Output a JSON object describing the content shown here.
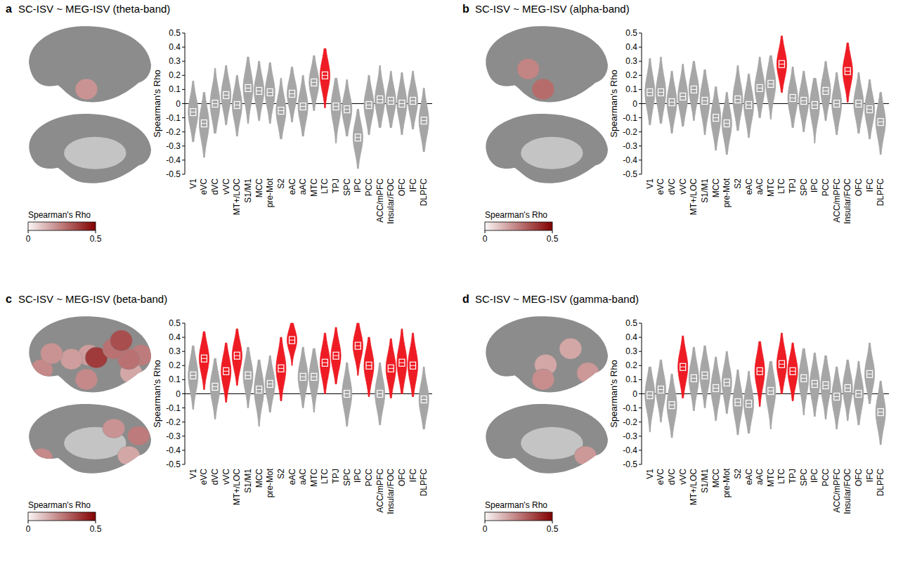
{
  "chart_data": [
    {
      "type": "violin",
      "panel": "a",
      "title": "SC-ISV ~ MEG-ISV (theta-band)",
      "y_label": "Spearman's Rho",
      "categories": [
        "V1",
        "eVC",
        "dVC",
        "vVC",
        "MT+/LOC",
        "S1/M1",
        "MCC",
        "pre-Mot",
        "S2",
        "eAC",
        "aAC",
        "MTC",
        "LTC",
        "TPJ",
        "SPC",
        "IPC",
        "PCC",
        "ACC/mPFC",
        "Insular/FOC",
        "OFC",
        "IFC",
        "DLPFC"
      ],
      "values": [
        -0.06,
        -0.14,
        0.0,
        0.06,
        -0.01,
        0.11,
        0.09,
        0.08,
        -0.05,
        0.07,
        -0.02,
        0.15,
        0.2,
        -0.02,
        -0.04,
        -0.24,
        -0.01,
        0.03,
        0.02,
        0.0,
        0.02,
        -0.12
      ],
      "low": [
        -0.27,
        -0.38,
        -0.21,
        -0.15,
        -0.23,
        -0.14,
        -0.12,
        -0.14,
        -0.25,
        -0.13,
        -0.23,
        -0.05,
        -0.03,
        -0.28,
        -0.23,
        -0.46,
        -0.22,
        -0.17,
        -0.17,
        -0.22,
        -0.18,
        -0.34
      ],
      "high": [
        0.16,
        0.08,
        0.25,
        0.27,
        0.2,
        0.33,
        0.3,
        0.29,
        0.18,
        0.26,
        0.2,
        0.34,
        0.39,
        0.18,
        0.17,
        -0.04,
        0.2,
        0.27,
        0.23,
        0.22,
        0.23,
        0.11
      ],
      "color": "#a6a6a6",
      "colors": [
        "#a6a6a6",
        "#a6a6a6",
        "#a6a6a6",
        "#a6a6a6",
        "#a6a6a6",
        "#a6a6a6",
        "#a6a6a6",
        "#a6a6a6",
        "#a6a6a6",
        "#a6a6a6",
        "#a6a6a6",
        "#a6a6a6",
        "#ee1c24",
        "#a6a6a6",
        "#a6a6a6",
        "#a6a6a6",
        "#a6a6a6",
        "#a6a6a6",
        "#a6a6a6",
        "#a6a6a6",
        "#a6a6a6",
        "#a6a6a6"
      ],
      "ylim": [
        -0.5,
        0.5
      ],
      "yticks": [
        -0.5,
        -0.4,
        -0.3,
        -0.2,
        -0.1,
        0,
        0.1,
        0.2,
        0.3,
        0.4,
        0.5
      ],
      "colorbar": {
        "label": "Spearman's Rho",
        "range": [
          0,
          0.5
        ],
        "ticks": [
          0,
          0.5
        ]
      }
    },
    {
      "type": "violin",
      "panel": "b",
      "title": "SC-ISV ~ MEG-ISV (alpha-band)",
      "y_label": "Spearman's Rho",
      "categories": [
        "V1",
        "eVC",
        "dVC",
        "vVC",
        "MT+/LOC",
        "S1/M1",
        "MCC",
        "pre-Mot",
        "S2",
        "eAC",
        "aAC",
        "MTC",
        "LTC",
        "TPJ",
        "SPC",
        "IPC",
        "PCC",
        "ACC/mPFC",
        "Insular/FOC",
        "OFC",
        "IFC",
        "DLPFC"
      ],
      "values": [
        0.08,
        0.08,
        0.01,
        0.05,
        0.1,
        0.02,
        -0.1,
        -0.14,
        0.03,
        -0.01,
        0.11,
        0.14,
        0.28,
        0.04,
        0.02,
        -0.01,
        0.09,
        0.0,
        0.23,
        0.0,
        -0.04,
        -0.13
      ],
      "low": [
        -0.15,
        -0.14,
        -0.21,
        -0.16,
        -0.12,
        -0.22,
        -0.33,
        -0.36,
        -0.19,
        -0.24,
        -0.1,
        -0.11,
        0.08,
        -0.17,
        -0.2,
        -0.28,
        -0.12,
        -0.22,
        0.01,
        -0.21,
        -0.25,
        -0.36
      ],
      "high": [
        0.32,
        0.33,
        0.23,
        0.28,
        0.3,
        0.24,
        0.12,
        0.08,
        0.27,
        0.21,
        0.33,
        0.34,
        0.48,
        0.26,
        0.23,
        0.18,
        0.3,
        0.22,
        0.43,
        0.22,
        0.17,
        0.08
      ],
      "color": "#a6a6a6",
      "colors": [
        "#a6a6a6",
        "#a6a6a6",
        "#a6a6a6",
        "#a6a6a6",
        "#a6a6a6",
        "#a6a6a6",
        "#a6a6a6",
        "#a6a6a6",
        "#a6a6a6",
        "#a6a6a6",
        "#a6a6a6",
        "#a6a6a6",
        "#ee1c24",
        "#a6a6a6",
        "#a6a6a6",
        "#a6a6a6",
        "#a6a6a6",
        "#a6a6a6",
        "#ee1c24",
        "#a6a6a6",
        "#a6a6a6",
        "#a6a6a6"
      ],
      "ylim": [
        -0.5,
        0.5
      ],
      "yticks": [
        -0.5,
        -0.4,
        -0.3,
        -0.2,
        -0.1,
        0,
        0.1,
        0.2,
        0.3,
        0.4,
        0.5
      ],
      "colorbar": {
        "label": "Spearman's Rho",
        "range": [
          0,
          0.5
        ],
        "ticks": [
          0,
          0.5
        ]
      }
    },
    {
      "type": "violin",
      "panel": "c",
      "title": "SC-ISV ~ MEG-ISV (beta-band)",
      "y_label": "Spearman's Rho",
      "categories": [
        "V1",
        "eVC",
        "dVC",
        "vVC",
        "MT+/LOC",
        "S1/M1",
        "MCC",
        "pre-Mot",
        "S2",
        "eAC",
        "aAC",
        "MTC",
        "LTC",
        "TPJ",
        "SPC",
        "IPC",
        "PCC",
        "ACC/mPFC",
        "Insular/FOC",
        "OFC",
        "IFC",
        "DLPFC"
      ],
      "values": [
        0.13,
        0.25,
        0.05,
        0.16,
        0.27,
        0.13,
        0.03,
        0.07,
        0.18,
        0.38,
        0.12,
        0.12,
        0.22,
        0.27,
        0.0,
        0.34,
        0.2,
        0.0,
        0.18,
        0.22,
        0.2,
        -0.04
      ],
      "low": [
        -0.11,
        0.03,
        -0.18,
        -0.06,
        0.06,
        -0.1,
        -0.23,
        -0.13,
        -0.05,
        0.2,
        -0.1,
        -0.13,
        0.0,
        0.07,
        -0.23,
        0.13,
        -0.02,
        -0.22,
        -0.03,
        0.0,
        -0.02,
        -0.25
      ],
      "high": [
        0.34,
        0.44,
        0.25,
        0.36,
        0.46,
        0.33,
        0.24,
        0.27,
        0.4,
        0.5,
        0.33,
        0.32,
        0.43,
        0.47,
        0.22,
        0.5,
        0.4,
        0.22,
        0.39,
        0.46,
        0.43,
        0.19
      ],
      "color": "#a6a6a6",
      "colors": [
        "#a6a6a6",
        "#ee1c24",
        "#a6a6a6",
        "#ee1c24",
        "#ee1c24",
        "#a6a6a6",
        "#a6a6a6",
        "#a6a6a6",
        "#ee1c24",
        "#ee1c24",
        "#a6a6a6",
        "#a6a6a6",
        "#ee1c24",
        "#ee1c24",
        "#a6a6a6",
        "#ee1c24",
        "#ee1c24",
        "#a6a6a6",
        "#ee1c24",
        "#ee1c24",
        "#ee1c24",
        "#a6a6a6"
      ],
      "ylim": [
        -0.5,
        0.5
      ],
      "yticks": [
        -0.5,
        -0.4,
        -0.3,
        -0.2,
        -0.1,
        0,
        0.1,
        0.2,
        0.3,
        0.4,
        0.5
      ],
      "colorbar": {
        "label": "Spearman's Rho",
        "range": [
          0,
          0.5
        ],
        "ticks": [
          0,
          0.5
        ]
      }
    },
    {
      "type": "violin",
      "panel": "d",
      "title": "SC-ISV ~ MEG-ISV (gamma-band)",
      "y_label": "Spearman's Rho",
      "categories": [
        "V1",
        "eVC",
        "dVC",
        "vVC",
        "MT+/LOC",
        "S1/M1",
        "MCC",
        "pre-Mot",
        "S2",
        "eAC",
        "aAC",
        "MTC",
        "LTC",
        "TPJ",
        "SPC",
        "IPC",
        "PCC",
        "ACC/mPFC",
        "Insular/FOC",
        "OFC",
        "IFC",
        "DLPFC"
      ],
      "values": [
        -0.01,
        0.03,
        -0.08,
        0.19,
        0.11,
        0.13,
        0.04,
        0.08,
        -0.06,
        -0.07,
        0.16,
        0.02,
        0.21,
        0.16,
        0.11,
        0.07,
        0.06,
        -0.02,
        0.04,
        0.0,
        0.14,
        -0.13
      ],
      "low": [
        -0.27,
        -0.2,
        -0.31,
        -0.03,
        -0.12,
        -0.1,
        -0.19,
        -0.14,
        -0.29,
        -0.28,
        -0.09,
        -0.25,
        0.0,
        -0.05,
        -0.15,
        -0.16,
        -0.18,
        -0.25,
        -0.19,
        -0.22,
        -0.07,
        -0.36
      ],
      "high": [
        0.19,
        0.24,
        0.14,
        0.41,
        0.33,
        0.34,
        0.26,
        0.3,
        0.17,
        0.16,
        0.37,
        0.23,
        0.43,
        0.36,
        0.32,
        0.29,
        0.27,
        0.19,
        0.24,
        0.23,
        0.36,
        0.09
      ],
      "color": "#a6a6a6",
      "colors": [
        "#a6a6a6",
        "#a6a6a6",
        "#a6a6a6",
        "#ee1c24",
        "#a6a6a6",
        "#a6a6a6",
        "#a6a6a6",
        "#a6a6a6",
        "#a6a6a6",
        "#a6a6a6",
        "#ee1c24",
        "#a6a6a6",
        "#ee1c24",
        "#ee1c24",
        "#a6a6a6",
        "#a6a6a6",
        "#a6a6a6",
        "#a6a6a6",
        "#a6a6a6",
        "#a6a6a6",
        "#a6a6a6",
        "#a6a6a6"
      ],
      "ylim": [
        -0.5,
        0.5
      ],
      "yticks": [
        -0.5,
        -0.4,
        -0.3,
        -0.2,
        -0.1,
        0,
        0.1,
        0.2,
        0.3,
        0.4,
        0.5
      ],
      "colorbar": {
        "label": "Spearman's Rho",
        "range": [
          0,
          0.5
        ],
        "ticks": [
          0,
          0.5
        ]
      }
    }
  ]
}
